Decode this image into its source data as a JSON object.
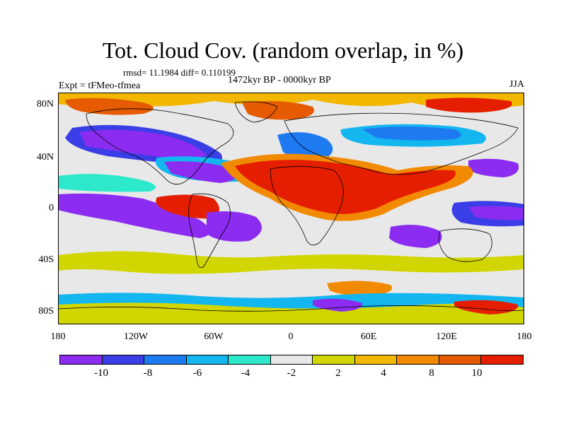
{
  "header": {
    "title": "Tot. Cloud Cov. (random overlap, in %)",
    "stats": "rmsd= 11.1984 diff= 0.110199",
    "period": "1472kyr BP - 0000kyr BP",
    "experiment": "Expt = tFMeo-tfmea",
    "season": "JJA"
  },
  "axes": {
    "x_ticks": [
      "180",
      "120W",
      "60W",
      "0",
      "60E",
      "120E",
      "180"
    ],
    "y_ticks": [
      "80N",
      "40N",
      "0",
      "40S",
      "80S"
    ]
  },
  "colorbar": {
    "colors": [
      "#8b2cf0",
      "#3a3ee6",
      "#1e7af0",
      "#14b6f0",
      "#2ee8cc",
      "#e8e8e8",
      "#d2d600",
      "#f2b800",
      "#f28a00",
      "#e65a00",
      "#e61e00"
    ],
    "labels": [
      "-10",
      "-8",
      "-6",
      "-4",
      "-2",
      "2",
      "4",
      "8",
      "10"
    ]
  },
  "map": {
    "background_color": "#e8e8e8",
    "coastline_color": "#000000"
  }
}
